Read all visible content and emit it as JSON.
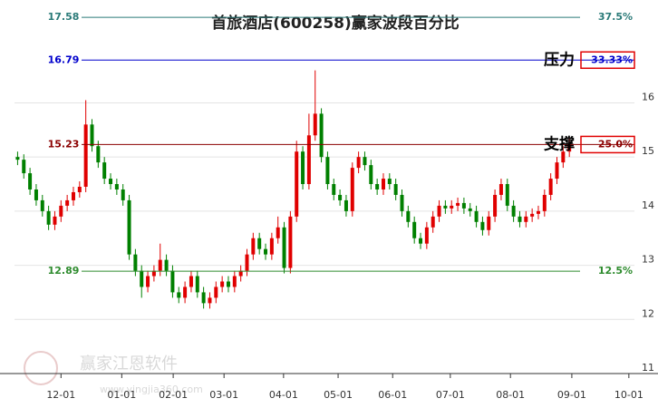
{
  "chart_data": {
    "type": "candlestick",
    "title": "首旅酒店(600258)赢家波段百分比",
    "up_color": "#e00000",
    "down_color": "#008000",
    "grid": true,
    "xlim": [
      0,
      100
    ],
    "xticks": [
      {
        "value": 7.5,
        "label": "12-01"
      },
      {
        "value": 17.3,
        "label": "01-01"
      },
      {
        "value": 25.6,
        "label": "02-01"
      },
      {
        "value": 33.8,
        "label": "03-01"
      },
      {
        "value": 43.4,
        "label": "04-01"
      },
      {
        "value": 52.2,
        "label": "05-01"
      },
      {
        "value": 61,
        "label": "06-01"
      },
      {
        "value": 70.3,
        "label": "07-01"
      },
      {
        "value": 80,
        "label": "08-01"
      },
      {
        "value": 89.9,
        "label": "09-01"
      },
      {
        "value": 99.1,
        "label": "10-01"
      }
    ],
    "ylim": [
      11,
      17.9
    ],
    "yticks": [
      11,
      12,
      13,
      14,
      15,
      16
    ],
    "levels": [
      {
        "value": 17.58,
        "label": "37.5%",
        "color": "#2a7a78"
      },
      {
        "value": 16.79,
        "label": "33.33%",
        "color": "#0000cc"
      },
      {
        "value": 15.23,
        "label": "25.0%",
        "color": "#8b0000"
      },
      {
        "value": 12.89,
        "label": "12.5%",
        "color": "#2e8b2e"
      }
    ],
    "annotations": [
      {
        "text": "压力",
        "level": 1
      },
      {
        "text": "支撑",
        "level": 2
      }
    ],
    "watermark": "赢家江恩软件",
    "watermark_url": "www.yingjia360.com",
    "candles": [
      [
        15.0,
        15.1,
        14.85,
        14.95
      ],
      [
        14.95,
        15.05,
        14.6,
        14.7
      ],
      [
        14.7,
        14.8,
        14.3,
        14.4
      ],
      [
        14.4,
        14.5,
        14.1,
        14.2
      ],
      [
        14.2,
        14.3,
        13.9,
        14.0
      ],
      [
        14.0,
        14.1,
        13.65,
        13.75
      ],
      [
        13.75,
        14.0,
        13.65,
        13.9
      ],
      [
        13.9,
        14.2,
        13.8,
        14.1
      ],
      [
        14.1,
        14.3,
        14.0,
        14.2
      ],
      [
        14.2,
        14.45,
        14.1,
        14.35
      ],
      [
        14.35,
        14.55,
        14.25,
        14.45
      ],
      [
        14.45,
        16.05,
        14.35,
        15.6
      ],
      [
        15.6,
        15.7,
        15.1,
        15.2
      ],
      [
        15.2,
        15.3,
        14.8,
        14.9
      ],
      [
        14.9,
        15.0,
        14.5,
        14.6
      ],
      [
        14.6,
        14.7,
        14.4,
        14.5
      ],
      [
        14.5,
        14.6,
        14.3,
        14.4
      ],
      [
        14.4,
        14.5,
        14.1,
        14.2
      ],
      [
        14.2,
        14.3,
        13.1,
        13.2
      ],
      [
        13.2,
        13.3,
        12.8,
        12.9
      ],
      [
        12.9,
        13.0,
        12.4,
        12.6
      ],
      [
        12.6,
        12.9,
        12.5,
        12.8
      ],
      [
        12.8,
        13.0,
        12.7,
        12.9
      ],
      [
        12.9,
        13.4,
        12.8,
        13.1
      ],
      [
        13.1,
        13.2,
        12.8,
        12.9
      ],
      [
        12.9,
        13.0,
        12.4,
        12.5
      ],
      [
        12.5,
        12.6,
        12.3,
        12.4
      ],
      [
        12.4,
        12.7,
        12.3,
        12.6
      ],
      [
        12.6,
        12.9,
        12.5,
        12.8
      ],
      [
        12.8,
        12.9,
        12.4,
        12.5
      ],
      [
        12.5,
        12.6,
        12.2,
        12.3
      ],
      [
        12.3,
        12.5,
        12.2,
        12.4
      ],
      [
        12.4,
        12.7,
        12.3,
        12.6
      ],
      [
        12.6,
        12.8,
        12.5,
        12.7
      ],
      [
        12.7,
        12.8,
        12.5,
        12.6
      ],
      [
        12.6,
        12.9,
        12.5,
        12.8
      ],
      [
        12.8,
        13.0,
        12.7,
        12.9
      ],
      [
        12.9,
        13.3,
        12.8,
        13.2
      ],
      [
        13.2,
        13.6,
        13.1,
        13.5
      ],
      [
        13.5,
        13.6,
        13.2,
        13.3
      ],
      [
        13.3,
        13.4,
        13.1,
        13.2
      ],
      [
        13.2,
        13.6,
        13.1,
        13.5
      ],
      [
        13.5,
        13.9,
        13.4,
        13.7
      ],
      [
        13.7,
        13.8,
        12.85,
        12.95
      ],
      [
        12.95,
        14.0,
        12.85,
        13.9
      ],
      [
        13.9,
        15.3,
        13.8,
        15.1
      ],
      [
        15.1,
        15.2,
        14.4,
        14.5
      ],
      [
        14.5,
        15.8,
        14.4,
        15.4
      ],
      [
        15.4,
        16.6,
        15.3,
        15.8
      ],
      [
        15.8,
        15.9,
        14.9,
        15.0
      ],
      [
        15.0,
        15.1,
        14.4,
        14.5
      ],
      [
        14.5,
        14.6,
        14.2,
        14.3
      ],
      [
        14.3,
        14.4,
        14.1,
        14.2
      ],
      [
        14.2,
        14.3,
        13.9,
        14.0
      ],
      [
        14.0,
        14.9,
        13.9,
        14.8
      ],
      [
        14.8,
        15.1,
        14.7,
        15.0
      ],
      [
        15.0,
        15.1,
        14.75,
        14.85
      ],
      [
        14.85,
        14.95,
        14.4,
        14.5
      ],
      [
        14.5,
        14.6,
        14.3,
        14.4
      ],
      [
        14.4,
        14.7,
        14.3,
        14.6
      ],
      [
        14.6,
        14.7,
        14.4,
        14.5
      ],
      [
        14.5,
        14.6,
        14.2,
        14.3
      ],
      [
        14.3,
        14.4,
        13.9,
        14.0
      ],
      [
        14.0,
        14.1,
        13.7,
        13.8
      ],
      [
        13.8,
        13.9,
        13.4,
        13.5
      ],
      [
        13.5,
        13.6,
        13.3,
        13.4
      ],
      [
        13.4,
        13.8,
        13.3,
        13.7
      ],
      [
        13.7,
        14.0,
        13.6,
        13.9
      ],
      [
        13.9,
        14.2,
        13.8,
        14.1
      ],
      [
        14.1,
        14.2,
        13.95,
        14.05
      ],
      [
        14.05,
        14.2,
        13.95,
        14.1
      ],
      [
        14.1,
        14.25,
        14.0,
        14.15
      ],
      [
        14.15,
        14.25,
        13.95,
        14.05
      ],
      [
        14.05,
        14.15,
        13.9,
        14.0
      ],
      [
        14.0,
        14.1,
        13.7,
        13.8
      ],
      [
        13.8,
        13.9,
        13.55,
        13.65
      ],
      [
        13.65,
        14.0,
        13.55,
        13.9
      ],
      [
        13.9,
        14.4,
        13.8,
        14.3
      ],
      [
        14.3,
        14.6,
        14.2,
        14.5
      ],
      [
        14.5,
        14.6,
        14.0,
        14.1
      ],
      [
        14.1,
        14.2,
        13.8,
        13.9
      ],
      [
        13.9,
        14.0,
        13.7,
        13.8
      ],
      [
        13.8,
        14.0,
        13.7,
        13.9
      ],
      [
        13.9,
        14.05,
        13.8,
        13.95
      ],
      [
        13.95,
        14.1,
        13.85,
        14.0
      ],
      [
        14.0,
        14.4,
        13.9,
        14.3
      ],
      [
        14.3,
        14.7,
        14.2,
        14.6
      ],
      [
        14.6,
        15.0,
        14.5,
        14.9
      ],
      [
        14.9,
        15.2,
        14.8,
        15.1
      ],
      [
        15.1,
        15.35,
        15.0,
        15.25
      ]
    ]
  }
}
